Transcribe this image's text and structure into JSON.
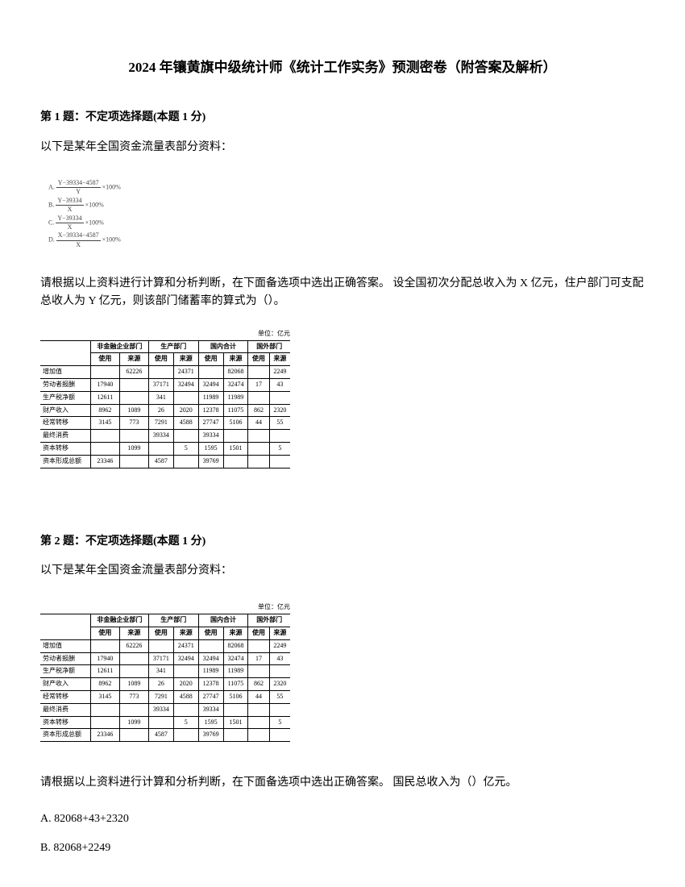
{
  "title": "2024 年镶黄旗中级统计师《统计工作实务》预测密卷（附答案及解析）",
  "q1": {
    "heading": "第 1 题：不定项选择题(本题 1 分)",
    "intro": "以下是某年全国资金流量表部分资料：",
    "formula": {
      "a_num": "Y−39334−4587",
      "a_den": "Y",
      "a_tail": "×100%",
      "b_num": "Y−39334",
      "b_den": "X",
      "b_tail": "×100%",
      "c_num": "Y−39334",
      "c_den": "X",
      "c_tail": "×100%",
      "d_num": "X−39334−4587",
      "d_den": "X",
      "d_tail": "×100%",
      "labA": "A.",
      "labB": "B.",
      "labC": "C.",
      "labD": "D."
    },
    "body": "请根据以上资料进行计算和分析判断，在下面备选项中选出正确答案。  设全国初次分配总收入为 X 亿元，住户部门可支配总收人为 Y 亿元，则该部门储蓄率的算式为（）。"
  },
  "q2": {
    "heading": "第 2 题：不定项选择题(本题 1 分)",
    "intro": "以下是某年全国资金流量表部分资料：",
    "body": "请根据以上资料进行计算和分析判断，在下面备选项中选出正确答案。  国民总收入为（）亿元。",
    "optA": "A. 82068+43+2320",
    "optB": "B. 82068+2249"
  },
  "table": {
    "unit": "单位：亿元",
    "h_nonfin": "非金融企业部门",
    "h_prod": "生产部门",
    "h_domtot": "国内合计",
    "h_foreign": "国外部门",
    "h_use": "使用",
    "h_src": "来源",
    "rows": [
      {
        "label": "增加值",
        "c": [
          "",
          "62226",
          "",
          "24371",
          "",
          "82068",
          "",
          "2249"
        ]
      },
      {
        "label": "劳动者报酬",
        "c": [
          "17940",
          "",
          "37171",
          "32494",
          "32494",
          "32474",
          "17",
          "43"
        ]
      },
      {
        "label": "生产税净额",
        "c": [
          "12611",
          "",
          "341",
          "",
          "11989",
          "11989",
          "",
          ""
        ]
      },
      {
        "label": "财产收入",
        "c": [
          "8962",
          "1089",
          "26",
          "2020",
          "12378",
          "11075",
          "862",
          "2320"
        ]
      },
      {
        "label": "经常转移",
        "c": [
          "3145",
          "773",
          "7291",
          "4588",
          "27747",
          "5106",
          "44",
          "55"
        ]
      },
      {
        "label": "最终消费",
        "c": [
          "",
          "",
          "39334",
          "",
          "39334",
          "",
          "",
          ""
        ]
      },
      {
        "label": "资本转移",
        "c": [
          "",
          "1099",
          "",
          "5",
          "1595",
          "1501",
          "",
          "5"
        ]
      },
      {
        "label": "资本形成总额",
        "c": [
          "23346",
          "",
          "4587",
          "",
          "39769",
          "",
          "",
          ""
        ]
      }
    ]
  }
}
